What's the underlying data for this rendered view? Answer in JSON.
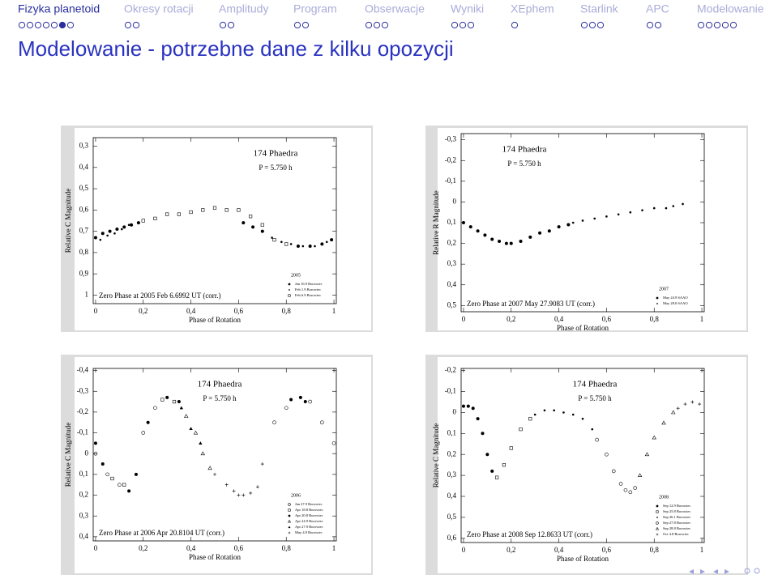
{
  "nav": {
    "sections": [
      {
        "title": "Fizyka planetoid",
        "frames": 7
      },
      {
        "title": "Okresy rotacji",
        "frames": 2
      },
      {
        "title": "Amplitudy",
        "frames": 2
      },
      {
        "title": "Program",
        "frames": 2
      },
      {
        "title": "Obserwacje",
        "frames": 3
      },
      {
        "title": "Wyniki",
        "frames": 3
      },
      {
        "title": "XEphem",
        "frames": 1
      },
      {
        "title": "Starlink",
        "frames": 3
      },
      {
        "title": "APC",
        "frames": 2
      },
      {
        "title": "Modelowanie",
        "frames": 5
      }
    ],
    "current": {
      "section": 0,
      "frame": 5
    }
  },
  "slide_title": "Modelowanie - potrzebne dane z kilku opozycji",
  "chart_data": [
    {
      "type": "scatter",
      "title": "174 Phaedra",
      "subtitle": "P = 5.750 h",
      "annotation": "Zero Phase at 2005 Feb 6.6992 UT (corr.)",
      "xlabel": "Phase of Rotation",
      "ylabel": "Relative C Magnitude",
      "xlim": [
        -0.01,
        1.01
      ],
      "ylim": [
        0.26,
        1.04
      ],
      "y_inverted": true,
      "legend": "lower right",
      "legend_title": "2005",
      "xticks": [
        0,
        {
          "value": 0.2,
          "label": "0,2"
        },
        {
          "value": 0.4,
          "label": "0,4"
        },
        {
          "value": 0.6,
          "label": "0,6"
        },
        {
          "value": 0.8,
          "label": "0,8"
        },
        1
      ],
      "yticks": [
        {
          "value": 0.3,
          "label": "0,3"
        },
        {
          "value": 0.4,
          "label": "0,4"
        },
        {
          "value": 0.5,
          "label": "0,5"
        },
        {
          "value": 0.6,
          "label": "0,6"
        },
        {
          "value": 0.7,
          "label": "0,7"
        },
        {
          "value": 0.8,
          "label": "0,8"
        },
        {
          "value": 0.9,
          "label": "0,9"
        },
        1
      ],
      "series": [
        {
          "name": "Jan 16.9 Borowiec",
          "color": "#000000",
          "marker": "circle-filled",
          "x": [
            0.0,
            0.03,
            0.06,
            0.09,
            0.12,
            0.15,
            0.18,
            0.62,
            0.66,
            0.7,
            0.85,
            0.9,
            0.95,
            0.99
          ],
          "values": [
            0.73,
            0.71,
            0.7,
            0.69,
            0.68,
            0.67,
            0.66,
            0.66,
            0.68,
            0.7,
            0.77,
            0.77,
            0.76,
            0.74
          ]
        },
        {
          "name": "Feb 1.9 Borowiec",
          "color": "#000000",
          "marker": "dot",
          "x": [
            0.02,
            0.05,
            0.08,
            0.11,
            0.14,
            0.74,
            0.78,
            0.82,
            0.87,
            0.92,
            0.97
          ],
          "values": [
            0.74,
            0.72,
            0.71,
            0.69,
            0.67,
            0.73,
            0.75,
            0.76,
            0.77,
            0.77,
            0.75
          ]
        },
        {
          "name": "Feb 6.9 Borowiec",
          "color": "#000000",
          "marker": "square-open",
          "x": [
            0.2,
            0.25,
            0.3,
            0.35,
            0.4,
            0.45,
            0.5,
            0.55,
            0.6,
            0.65,
            0.7,
            0.75,
            0.8
          ],
          "values": [
            0.65,
            0.64,
            0.62,
            0.62,
            0.61,
            0.6,
            0.59,
            0.6,
            0.6,
            0.63,
            0.67,
            0.74,
            0.76
          ]
        }
      ]
    },
    {
      "type": "scatter",
      "title": "174 Phaedra",
      "subtitle": "P = 5.750 h",
      "annotation": "Zero Phase at 2007 May 27.9083 UT (corr.)",
      "xlabel": "Phase of Rotation",
      "ylabel": "Relative R Magnitude",
      "xlim": [
        -0.01,
        1.01
      ],
      "ylim": [
        -0.33,
        0.53
      ],
      "y_inverted": true,
      "legend": "lower right",
      "legend_title": "2007",
      "xticks": [
        0,
        {
          "value": 0.2,
          "label": "0,2"
        },
        {
          "value": 0.4,
          "label": "0,4"
        },
        {
          "value": 0.6,
          "label": "0,6"
        },
        {
          "value": 0.8,
          "label": "0,8"
        },
        1
      ],
      "yticks": [
        {
          "value": -0.3,
          "label": "-0,3"
        },
        {
          "value": -0.2,
          "label": "-0,2"
        },
        {
          "value": -0.1,
          "label": "-0,1"
        },
        0,
        {
          "value": 0.1,
          "label": "0,1"
        },
        {
          "value": 0.2,
          "label": "0,2"
        },
        {
          "value": 0.3,
          "label": "0,3"
        },
        {
          "value": 0.4,
          "label": "0,4"
        },
        {
          "value": 0.5,
          "label": "0,5"
        }
      ],
      "series": [
        {
          "name": "May 24.9 SAAO",
          "color": "#000000",
          "marker": "circle-filled",
          "x": [
            0,
            0.03,
            0.06,
            0.09,
            0.12,
            0.15,
            0.18,
            0.2,
            0.24,
            0.28,
            0.32,
            0.36,
            0.4,
            0.44
          ],
          "values": [
            0.1,
            0.12,
            0.14,
            0.16,
            0.18,
            0.19,
            0.2,
            0.2,
            0.19,
            0.17,
            0.15,
            0.14,
            0.12,
            0.11
          ]
        },
        {
          "name": "May 28.0 SAAO",
          "color": "#000000",
          "marker": "dot",
          "x": [
            0.46,
            0.5,
            0.55,
            0.6,
            0.65,
            0.7,
            0.75,
            0.8,
            0.85,
            0.88,
            0.92
          ],
          "values": [
            0.1,
            0.09,
            0.08,
            0.07,
            0.06,
            0.05,
            0.04,
            0.03,
            0.03,
            0.02,
            0.01
          ]
        }
      ]
    },
    {
      "type": "scatter",
      "title": "174 Phaedra",
      "subtitle": "P = 5.750 h",
      "annotation": "Zero Phase at 2006 Apr 20.8104 UT (corr.)",
      "xlabel": "Phase of Rotation",
      "ylabel": "Relative C Magnitude",
      "xlim": [
        -0.01,
        1.01
      ],
      "ylim": [
        -0.41,
        0.42
      ],
      "y_inverted": true,
      "legend": "lower right",
      "legend_title": "2006",
      "xticks": [
        0,
        {
          "value": 0.2,
          "label": "0,2"
        },
        {
          "value": 0.4,
          "label": "0,4"
        },
        {
          "value": 0.6,
          "label": "0,6"
        },
        {
          "value": 0.8,
          "label": "0,8"
        },
        1
      ],
      "yticks": [
        {
          "value": -0.4,
          "label": "-0,4"
        },
        {
          "value": -0.3,
          "label": "-0,3"
        },
        {
          "value": -0.2,
          "label": "-0,2"
        },
        {
          "value": -0.1,
          "label": "-0,1"
        },
        0,
        {
          "value": 0.1,
          "label": "0,1"
        },
        {
          "value": 0.2,
          "label": "0,2"
        },
        {
          "value": 0.3,
          "label": "0,3"
        },
        {
          "value": 0.4,
          "label": "0,4"
        }
      ],
      "series": [
        {
          "name": "Jan 27.9 Borowiec",
          "color": "#000000",
          "marker": "circle-open",
          "x": [
            0.0,
            0.05,
            0.1,
            0.2,
            0.25,
            0.75,
            0.8,
            0.9,
            0.95,
            1.0
          ],
          "values": [
            0.0,
            0.1,
            0.15,
            -0.1,
            -0.22,
            -0.15,
            -0.22,
            -0.25,
            -0.15,
            -0.05
          ]
        },
        {
          "name": "Apr 18.8 Borowiec",
          "color": "#000000",
          "marker": "square-open",
          "x": [
            0.07,
            0.12,
            0.28,
            0.33
          ],
          "values": [
            0.12,
            0.15,
            -0.26,
            -0.25
          ]
        },
        {
          "name": "Apr 20.8 Borowiec",
          "color": "#000000",
          "marker": "circle-filled",
          "x": [
            0.0,
            0.03,
            0.14,
            0.17,
            0.22,
            0.3,
            0.35,
            0.82,
            0.86,
            0.88
          ],
          "values": [
            -0.05,
            0.05,
            0.18,
            0.1,
            -0.15,
            -0.27,
            -0.25,
            -0.26,
            -0.27,
            -0.25
          ]
        },
        {
          "name": "Apr 24.9 Borowiec",
          "color": "#000000",
          "marker": "triangle-open",
          "x": [
            0.38,
            0.42,
            0.45,
            0.48
          ],
          "values": [
            -0.18,
            -0.1,
            0.0,
            0.07
          ]
        },
        {
          "name": "Apr 27.9 Borowiec",
          "color": "#000000",
          "marker": "triangle-filled",
          "x": [
            0.36,
            0.4,
            0.44
          ],
          "values": [
            -0.22,
            -0.12,
            -0.05
          ]
        },
        {
          "name": "May 4.9 Borowiec",
          "color": "#000000",
          "marker": "plus",
          "x": [
            0.5,
            0.55,
            0.58,
            0.6,
            0.62,
            0.65,
            0.68,
            0.7
          ],
          "values": [
            0.1,
            0.15,
            0.18,
            0.2,
            0.2,
            0.19,
            0.16,
            0.05
          ]
        }
      ]
    },
    {
      "type": "scatter",
      "title": "174 Phaedra",
      "subtitle": "P = 5.750 h",
      "annotation": "Zero Phase at 2008 Sep 12.8633 UT (corr.)",
      "xlabel": "Phase of Rotation",
      "ylabel": "Relative C Magnitude",
      "xlim": [
        -0.01,
        1.01
      ],
      "ylim": [
        -0.21,
        0.62
      ],
      "y_inverted": true,
      "legend": "lower right",
      "legend_title": "2008",
      "xticks": [
        0,
        {
          "value": 0.2,
          "label": "0,2"
        },
        {
          "value": 0.4,
          "label": "0,4"
        },
        {
          "value": 0.6,
          "label": "0,6"
        },
        {
          "value": 0.8,
          "label": "0,8"
        },
        1
      ],
      "yticks": [
        {
          "value": -0.2,
          "label": "-0,2"
        },
        {
          "value": -0.1,
          "label": "-0,1"
        },
        0,
        {
          "value": 0.1,
          "label": "0,1"
        },
        {
          "value": 0.2,
          "label": "0,2"
        },
        {
          "value": 0.3,
          "label": "0,3"
        },
        {
          "value": 0.4,
          "label": "0,4"
        },
        {
          "value": 0.5,
          "label": "0,5"
        },
        {
          "value": 0.6,
          "label": "0,6"
        }
      ],
      "series": [
        {
          "name": "Sep 12.9 Borowiec",
          "color": "#000000",
          "marker": "circle-filled",
          "x": [
            0,
            0.02,
            0.04,
            0.06,
            0.08,
            0.1,
            0.12
          ],
          "values": [
            -0.03,
            -0.03,
            -0.02,
            0.03,
            0.1,
            0.2,
            0.28
          ]
        },
        {
          "name": "Sep 25.8 Borowiec",
          "color": "#000000",
          "marker": "square-open",
          "x": [
            0.14,
            0.17,
            0.2,
            0.24,
            0.28
          ],
          "values": [
            0.31,
            0.25,
            0.17,
            0.08,
            0.03
          ]
        },
        {
          "name": "Sep 26.1 Borowiec",
          "color": "#000000",
          "marker": "dot",
          "x": [
            0.3,
            0.34,
            0.38,
            0.42,
            0.46,
            0.5,
            0.54
          ],
          "values": [
            0.01,
            -0.01,
            -0.01,
            0.0,
            0.01,
            0.03,
            0.08
          ]
        },
        {
          "name": "Sep 27.8 Borowiec",
          "color": "#000000",
          "marker": "circle-open",
          "x": [
            0.56,
            0.6,
            0.63,
            0.66,
            0.68,
            0.7,
            0.72
          ],
          "values": [
            0.13,
            0.2,
            0.28,
            0.34,
            0.37,
            0.38,
            0.36
          ]
        },
        {
          "name": "Sep 28.8 Borowiec",
          "color": "#000000",
          "marker": "triangle-open",
          "x": [
            0.74,
            0.77,
            0.8,
            0.84,
            0.88
          ],
          "values": [
            0.3,
            0.2,
            0.12,
            0.05,
            0.0
          ]
        },
        {
          "name": "Oct 4.8 Borowiec",
          "color": "#000000",
          "marker": "plus",
          "x": [
            0.9,
            0.93,
            0.96,
            0.99
          ],
          "values": [
            -0.02,
            -0.04,
            -0.05,
            -0.04
          ]
        }
      ]
    }
  ]
}
